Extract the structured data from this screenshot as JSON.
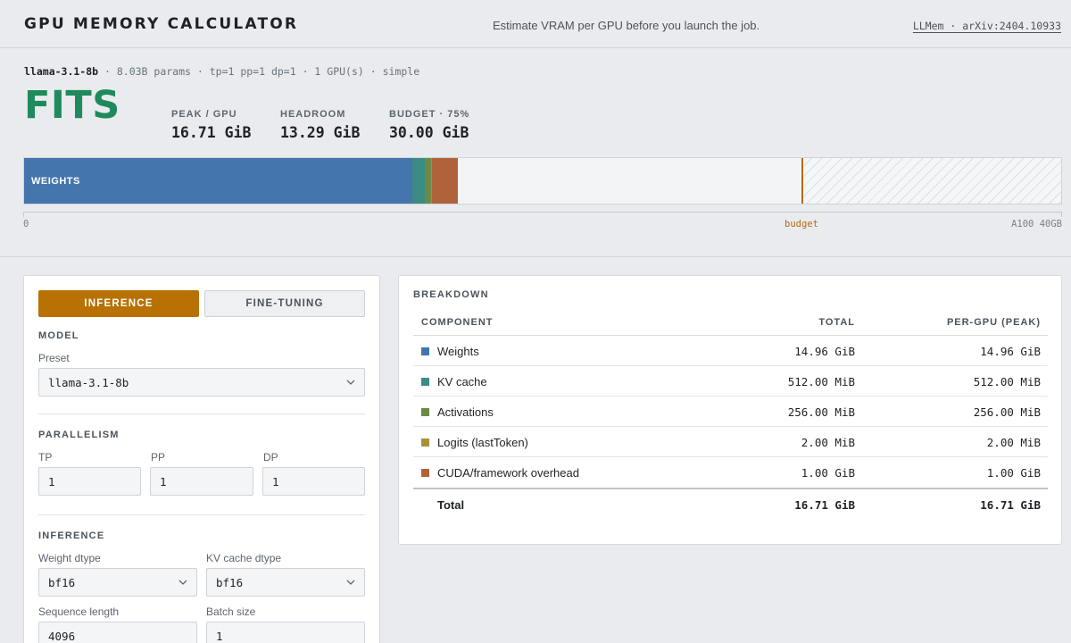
{
  "header": {
    "title": "GPU MEMORY CALCULATOR",
    "tagline": "Estimate VRAM per GPU before you launch the job.",
    "reference": "LLMem · arXiv:2404.10933"
  },
  "summary": {
    "model": "llama-3.1-8b",
    "meta": " · 8.03B params · tp=1 pp=1 dp=1 · 1 GPU(s) · simple",
    "verdict": "FITS",
    "stats": [
      {
        "label": "PEAK / GPU",
        "value": "16.71 GiB"
      },
      {
        "label": "HEADROOM",
        "value": "13.29 GiB"
      },
      {
        "label": "BUDGET · 75%",
        "value": "30.00 GiB"
      }
    ],
    "bar": {
      "capacity_gib": 40,
      "budget_gib": 30,
      "segments": [
        {
          "name": "weights",
          "label": "WEIGHTS",
          "gib": 14.96,
          "color": "#4575ad"
        },
        {
          "name": "kv-cache",
          "label": "",
          "gib": 0.5,
          "color": "#3a8c84"
        },
        {
          "name": "activations",
          "label": "",
          "gib": 0.25,
          "color": "#6b8a48"
        },
        {
          "name": "logits",
          "label": "",
          "gib": 0.002,
          "color": "#a8903a"
        },
        {
          "name": "overhead",
          "label": "",
          "gib": 1.0,
          "color": "#b0623a"
        }
      ]
    },
    "axis": {
      "min": "0",
      "budget": "budget",
      "max": "A100 40GB"
    }
  },
  "config": {
    "tabs": {
      "inference": "INFERENCE",
      "finetuning": "FINE-TUNING"
    },
    "model": {
      "section": "MODEL",
      "preset_label": "Preset",
      "preset_value": "llama-3.1-8b"
    },
    "parallelism": {
      "section": "PARALLELISM",
      "tp_label": "TP",
      "tp_value": "1",
      "pp_label": "PP",
      "pp_value": "1",
      "dp_label": "DP",
      "dp_value": "1"
    },
    "inference": {
      "section": "INFERENCE",
      "weight_dtype_label": "Weight dtype",
      "weight_dtype_value": "bf16",
      "kv_dtype_label": "KV cache dtype",
      "kv_dtype_value": "bf16",
      "seq_len_label": "Sequence length",
      "seq_len_value": "4096",
      "batch_label": "Batch size",
      "batch_value": "1"
    }
  },
  "breakdown": {
    "title": "BREAKDOWN",
    "columns": {
      "component": "COMPONENT",
      "total": "TOTAL",
      "per_gpu": "PER-GPU (PEAK)"
    },
    "rows": [
      {
        "name": "Weights",
        "total": "14.96 GiB",
        "per_gpu": "14.96 GiB",
        "color": "#4575ad"
      },
      {
        "name": "KV cache",
        "total": "512.00 MiB",
        "per_gpu": "512.00 MiB",
        "color": "#3a8c84"
      },
      {
        "name": "Activations",
        "total": "256.00 MiB",
        "per_gpu": "256.00 MiB",
        "color": "#6b8a48"
      },
      {
        "name": "Logits (lastToken)",
        "total": "2.00 MiB",
        "per_gpu": "2.00 MiB",
        "color": "#a8903a"
      },
      {
        "name": "CUDA/framework overhead",
        "total": "1.00 GiB",
        "per_gpu": "1.00 GiB",
        "color": "#b0623a"
      }
    ],
    "total": {
      "name": "Total",
      "total": "16.71 GiB",
      "per_gpu": "16.71 GiB"
    }
  }
}
